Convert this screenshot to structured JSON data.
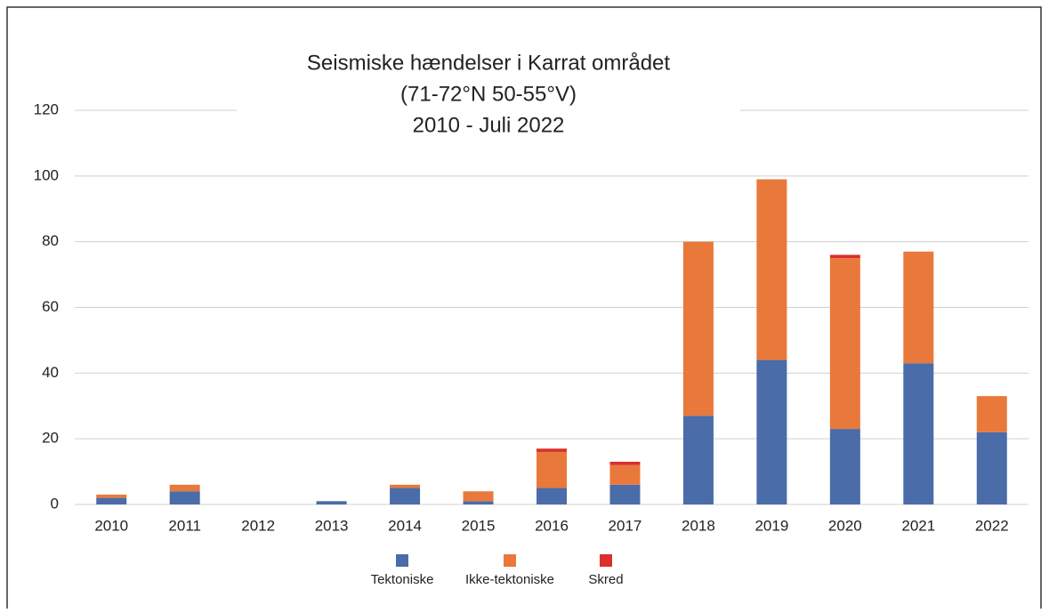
{
  "chart_data": {
    "type": "stacked_bar",
    "title": [
      "Seismiske hændelser i Karrat området",
      "(71-72°N 50-55°V)",
      "2010 - Juli 2022"
    ],
    "categories": [
      "2010",
      "2011",
      "2012",
      "2013",
      "2014",
      "2015",
      "2016",
      "2017",
      "2018",
      "2019",
      "2020",
      "2021",
      "2022"
    ],
    "series": [
      {
        "name": "Tektoniske",
        "color": "#4a6ca8",
        "values": [
          2,
          4,
          0,
          1,
          5,
          1,
          5,
          6,
          27,
          44,
          23,
          43,
          22
        ]
      },
      {
        "name": "Ikke-tektoniske",
        "color": "#e8793b",
        "values": [
          1,
          2,
          0,
          0,
          1,
          3,
          11,
          6,
          53,
          55,
          52,
          34,
          11
        ]
      },
      {
        "name": "Skred",
        "color": "#d9302c",
        "values": [
          0,
          0,
          0,
          0,
          0,
          0,
          1,
          1,
          0,
          0,
          1,
          0,
          0
        ]
      }
    ],
    "ylim": [
      0,
      120
    ],
    "yticks": [
      0,
      20,
      40,
      60,
      80,
      100,
      120
    ],
    "grid": true
  }
}
